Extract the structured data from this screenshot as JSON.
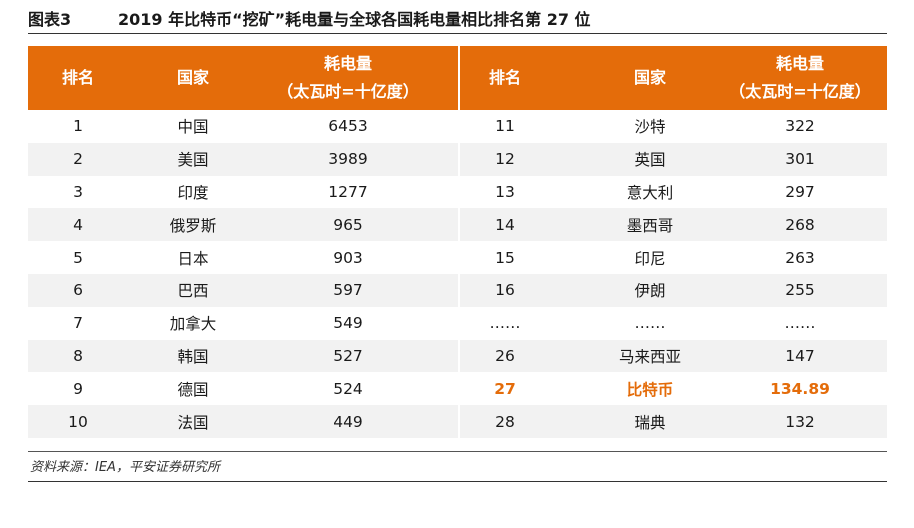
{
  "figure": {
    "label": "图表3",
    "title": "2019 年比特币“挖矿”耗电量与全球各国耗电量相比排名第 27 位"
  },
  "table": {
    "headers": {
      "rank": "排名",
      "country": "国家",
      "consumption_line1": "耗电量",
      "consumption_line2": "（太瓦时=十亿度）"
    },
    "left_rows": [
      {
        "rank": "1",
        "country": "中国",
        "value": "6453"
      },
      {
        "rank": "2",
        "country": "美国",
        "value": "3989"
      },
      {
        "rank": "3",
        "country": "印度",
        "value": "1277"
      },
      {
        "rank": "4",
        "country": "俄罗斯",
        "value": "965"
      },
      {
        "rank": "5",
        "country": "日本",
        "value": "903"
      },
      {
        "rank": "6",
        "country": "巴西",
        "value": "597"
      },
      {
        "rank": "7",
        "country": "加拿大",
        "value": "549"
      },
      {
        "rank": "8",
        "country": "韩国",
        "value": "527"
      },
      {
        "rank": "9",
        "country": "德国",
        "value": "524"
      },
      {
        "rank": "10",
        "country": "法国",
        "value": "449"
      }
    ],
    "right_rows": [
      {
        "rank": "11",
        "country": "沙特",
        "value": "322"
      },
      {
        "rank": "12",
        "country": "英国",
        "value": "301"
      },
      {
        "rank": "13",
        "country": "意大利",
        "value": "297"
      },
      {
        "rank": "14",
        "country": "墨西哥",
        "value": "268"
      },
      {
        "rank": "15",
        "country": "印尼",
        "value": "263"
      },
      {
        "rank": "16",
        "country": "伊朗",
        "value": "255"
      },
      {
        "rank": "……",
        "country": "……",
        "value": "……"
      },
      {
        "rank": "26",
        "country": "马来西亚",
        "value": "147"
      },
      {
        "rank": "27",
        "country": "比特币",
        "value": "134.89",
        "highlight": true
      },
      {
        "rank": "28",
        "country": "瑞典",
        "value": "132"
      }
    ]
  },
  "source": "资料来源：IEA，平安证券研究所",
  "colors": {
    "header_bg": "#e46c0a",
    "highlight_text": "#e46c0a",
    "stripe_bg": "#f2f2f2"
  }
}
